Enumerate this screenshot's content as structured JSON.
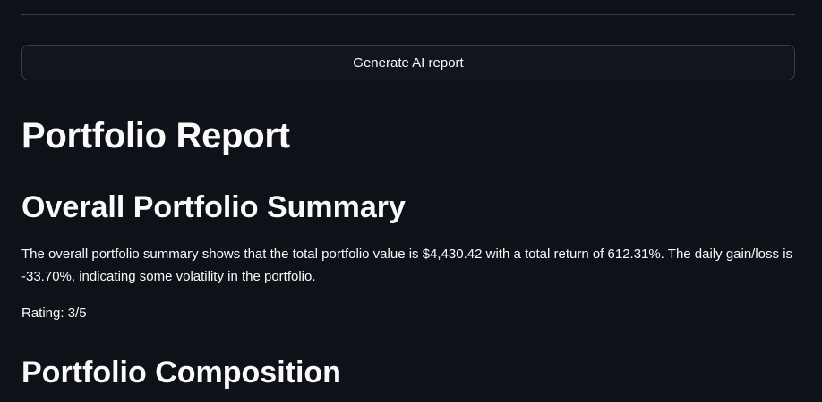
{
  "actions": {
    "generate_report_label": "Generate AI report"
  },
  "report": {
    "title": "Portfolio Report",
    "summary": {
      "heading": "Overall Portfolio Summary",
      "paragraph": "The overall portfolio summary shows that the total portfolio value is $4,430.42 with a total return of 612.31%. The daily gain/loss is -33.70%, indicating some volatility in the portfolio.",
      "rating": "Rating: 3/5"
    },
    "composition": {
      "heading": "Portfolio Composition"
    }
  }
}
